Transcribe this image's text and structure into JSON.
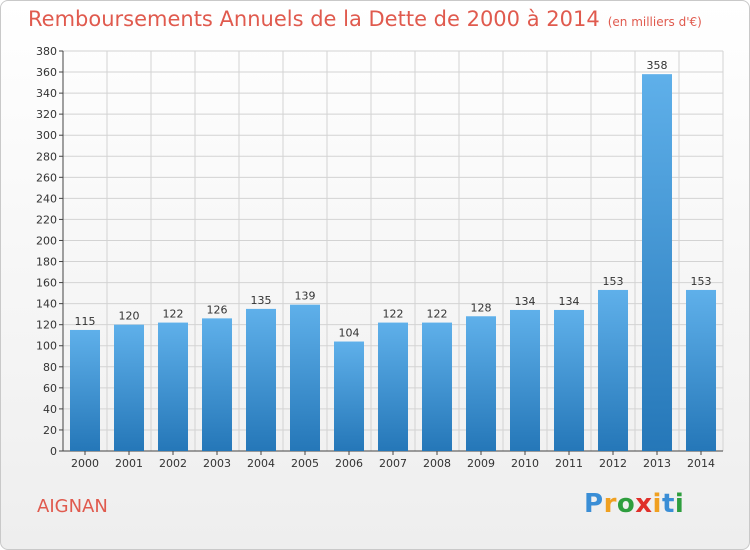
{
  "title": "Remboursements Annuels de la Dette de 2000 à 2014",
  "unit_label": "(en milliers d'€)",
  "commune": "AIGNAN",
  "brand": {
    "name": "Proxiti",
    "letters": [
      {
        "char": "P",
        "color": "#3a8ed6"
      },
      {
        "char": "r",
        "color": "#f0a020"
      },
      {
        "char": "o",
        "color": "#2e9e3e"
      },
      {
        "char": "x",
        "color": "#e0302a"
      },
      {
        "char": "i",
        "color": "#f0a020"
      },
      {
        "char": "t",
        "color": "#3a8ed6"
      },
      {
        "char": "i",
        "color": "#2e9e3e"
      }
    ]
  },
  "colors": {
    "bar_top": "#5fb0ea",
    "bar_bottom": "#2577b8",
    "title": "#e05a4e",
    "grid": "#d3d3d3",
    "axis": "#444444"
  },
  "chart_data": {
    "type": "bar",
    "title": "Remboursements Annuels de la Dette de 2000 à 2014",
    "xlabel": "",
    "ylabel": "(en milliers d'€)",
    "ylim": [
      0,
      380
    ],
    "ytick_step": 20,
    "grid": true,
    "categories": [
      "2000",
      "2001",
      "2002",
      "2003",
      "2004",
      "2005",
      "2006",
      "2007",
      "2008",
      "2009",
      "2010",
      "2011",
      "2012",
      "2013",
      "2014"
    ],
    "values": [
      115,
      120,
      122,
      126,
      135,
      139,
      104,
      122,
      122,
      128,
      134,
      134,
      153,
      358,
      153
    ],
    "value_labels": [
      "115",
      "120",
      "122",
      "126",
      "135",
      "139",
      "104",
      "122",
      "122",
      "128",
      "134",
      "134",
      "153",
      "358",
      "153"
    ]
  }
}
